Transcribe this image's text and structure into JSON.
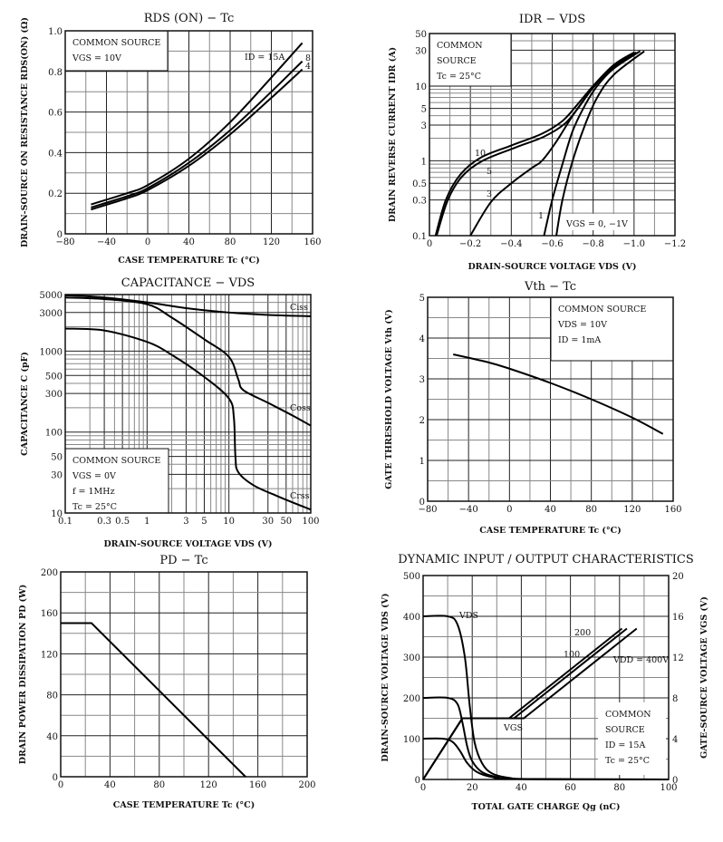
{
  "chart_data": [
    {
      "id": "rds",
      "type": "line",
      "title": "RDS (ON) − Tc",
      "xlabel": "CASE TEMPERATURE  Tc  (°C)",
      "ylabel": "DRAIN-SOURCE ON RESISTANCE  RDS(ON)  (Ω)",
      "xlim": [
        -80,
        160
      ],
      "ylim": [
        0,
        1.0
      ],
      "x_ticks": [
        "−80",
        "−40",
        "0",
        "40",
        "80",
        "120",
        "160"
      ],
      "y_ticks": [
        "0",
        "0.2",
        "0.4",
        "0.6",
        "0.8",
        "1.0"
      ],
      "annotation": [
        "COMMON SOURCE",
        "VGS = 10V"
      ],
      "series_label": "ID = 15A",
      "series": [
        {
          "name": "15",
          "x": [
            -55,
            -20,
            0,
            40,
            80,
            120,
            150
          ],
          "y": [
            0.145,
            0.2,
            0.24,
            0.37,
            0.55,
            0.77,
            0.94
          ]
        },
        {
          "name": "8",
          "x": [
            -55,
            -20,
            0,
            40,
            80,
            120,
            150
          ],
          "y": [
            0.13,
            0.185,
            0.225,
            0.35,
            0.51,
            0.7,
            0.85
          ]
        },
        {
          "name": "4",
          "x": [
            -55,
            -20,
            0,
            40,
            80,
            120,
            150
          ],
          "y": [
            0.12,
            0.175,
            0.215,
            0.335,
            0.49,
            0.67,
            0.81
          ]
        }
      ]
    },
    {
      "id": "idr",
      "type": "line",
      "title": "IDR − VDS",
      "xlabel": "DRAIN-SOURCE VOLTAGE  VDS  (V)",
      "ylabel": "DRAIN REVERSE CURRENT  IDR  (A)",
      "xlim": [
        0,
        -1.2
      ],
      "ylim": [
        0.1,
        50
      ],
      "yscale": "log",
      "x_ticks": [
        "0",
        "−0.2",
        "−0.4",
        "−0.6",
        "−0.8",
        "−1.0",
        "−1.2"
      ],
      "y_ticks": [
        "0.1",
        "0.3",
        "0.5",
        "1",
        "3",
        "5",
        "10",
        "30",
        "50"
      ],
      "annotation": [
        "COMMON",
        "SOURCE",
        "Tc = 25°C"
      ],
      "vgs_label": "VGS = 0, −1V",
      "series": [
        {
          "name": "10",
          "x": [
            -0.03,
            -0.08,
            -0.15,
            -0.25,
            -0.4,
            -0.55,
            -0.65,
            -0.72,
            -0.8,
            -0.9,
            -1.0
          ],
          "y": [
            0.1,
            0.3,
            0.65,
            1.1,
            1.6,
            2.3,
            3.4,
            5.5,
            10,
            19,
            28
          ]
        },
        {
          "name": "5",
          "x": [
            -0.035,
            -0.09,
            -0.16,
            -0.26,
            -0.42,
            -0.56,
            -0.66,
            -0.73,
            -0.8,
            -0.9,
            -1.01
          ],
          "y": [
            0.1,
            0.3,
            0.62,
            1.0,
            1.5,
            2.1,
            3.1,
            5.2,
            9.5,
            18,
            28
          ]
        },
        {
          "name": "3",
          "x": [
            -0.2,
            -0.3,
            -0.4,
            -0.5,
            -0.55,
            -0.62,
            -0.7,
            -0.8,
            -0.9,
            -1.03
          ],
          "y": [
            0.1,
            0.28,
            0.5,
            0.8,
            1.0,
            1.8,
            4.0,
            9.5,
            18,
            29
          ]
        },
        {
          "name": "1",
          "x": [
            -0.56,
            -0.6,
            -0.65,
            -0.7,
            -0.76,
            -0.82,
            -0.9,
            -1.02
          ],
          "y": [
            0.1,
            0.3,
            0.9,
            2.5,
            5.5,
            10,
            17,
            28
          ]
        },
        {
          "name": "0,-1",
          "x": [
            -0.62,
            -0.65,
            -0.7,
            -0.76,
            -0.82,
            -0.9,
            -1.05
          ],
          "y": [
            0.1,
            0.3,
            1.0,
            3.0,
            7,
            14,
            29
          ]
        }
      ]
    },
    {
      "id": "cap",
      "type": "line",
      "title": "CAPACITANCE − VDS",
      "xlabel": "DRAIN-SOURCE VOLTAGE  VDS  (V)",
      "ylabel": "CAPACITANCE  C  (pF)",
      "xlim": [
        0.1,
        100
      ],
      "ylim": [
        10,
        5000
      ],
      "xscale": "log",
      "yscale": "log",
      "x_ticks": [
        "0.1",
        "0.3",
        "0.5",
        "1",
        "3",
        "5",
        "10",
        "30",
        "50",
        "100"
      ],
      "y_ticks": [
        "10",
        "30",
        "50",
        "100",
        "300",
        "500",
        "1000",
        "3000",
        "5000"
      ],
      "annotation": [
        "COMMON SOURCE",
        "VGS = 0V",
        "f = 1MHz",
        "Tc = 25°C"
      ],
      "series": [
        {
          "name": "Ciss",
          "x": [
            0.1,
            0.3,
            1,
            3,
            10,
            30,
            100
          ],
          "y": [
            4900,
            4600,
            4000,
            3400,
            3000,
            2800,
            2700
          ]
        },
        {
          "name": "Coss",
          "x": [
            0.1,
            0.3,
            1,
            2,
            5,
            10,
            13,
            15,
            30,
            60,
            100
          ],
          "y": [
            4600,
            4400,
            3800,
            2600,
            1400,
            850,
            450,
            330,
            230,
            160,
            120
          ]
        },
        {
          "name": "Crss",
          "x": [
            0.1,
            0.3,
            1,
            2,
            5,
            10,
            11.5,
            12,
            13,
            20,
            40,
            100
          ],
          "y": [
            1900,
            1800,
            1300,
            900,
            480,
            260,
            150,
            50,
            32,
            22,
            16,
            11
          ]
        }
      ]
    },
    {
      "id": "vth",
      "type": "line",
      "title": "Vth − Tc",
      "xlabel": "CASE TEMPERATURE  Tc  (°C)",
      "ylabel": "GATE THRESHOLD VOLTAGE  Vth  (V)",
      "xlim": [
        -80,
        160
      ],
      "ylim": [
        0,
        5
      ],
      "x_ticks": [
        "−80",
        "−40",
        "0",
        "40",
        "80",
        "120",
        "160"
      ],
      "y_ticks": [
        "0",
        "1",
        "2",
        "3",
        "4",
        "5"
      ],
      "annotation": [
        "COMMON SOURCE",
        "VDS = 10V",
        "ID = 1mA"
      ],
      "series": [
        {
          "name": "Vth",
          "x": [
            -55,
            -20,
            0,
            40,
            80,
            120,
            150
          ],
          "y": [
            3.6,
            3.4,
            3.25,
            2.9,
            2.5,
            2.05,
            1.65
          ]
        }
      ]
    },
    {
      "id": "pd",
      "type": "line",
      "title": "PD − Tc",
      "xlabel": "CASE TEMPERATURE  Tc  (°C)",
      "ylabel": "DRAIN POWER DISSIPATION  PD  (W)",
      "xlim": [
        0,
        200
      ],
      "ylim": [
        0,
        200
      ],
      "x_ticks": [
        "0",
        "40",
        "80",
        "120",
        "160",
        "200"
      ],
      "y_ticks": [
        "0",
        "40",
        "80",
        "120",
        "160",
        "200"
      ],
      "series": [
        {
          "name": "PD",
          "x": [
            0,
            25,
            150
          ],
          "y": [
            150,
            150,
            0
          ]
        }
      ]
    },
    {
      "id": "dyn",
      "type": "line",
      "title": "DYNAMIC INPUT / OUTPUT CHARACTERISTICS",
      "xlabel": "TOTAL GATE CHARGE  Qg  (nC)",
      "ylabel": "DRAIN-SOURCE VOLTAGE  VDS  (V)",
      "y2label": "GATE-SOURCE VOLTAGE  VGS  (V)",
      "xlim": [
        0,
        100
      ],
      "ylim": [
        0,
        500
      ],
      "y2lim": [
        0,
        20
      ],
      "x_ticks": [
        "0",
        "20",
        "40",
        "60",
        "80",
        "100"
      ],
      "y_ticks": [
        "0",
        "100",
        "200",
        "300",
        "400",
        "500"
      ],
      "y2_ticks": [
        "0",
        "4",
        "8",
        "12",
        "16",
        "20"
      ],
      "annotation": [
        "COMMON",
        "SOURCE",
        "ID = 15A",
        "Tc = 25°C"
      ],
      "labels": {
        "vds": "VDS",
        "vgs": "VGS",
        "vdd400": "VDD = 400V",
        "vdd200": "200",
        "vdd100": "100"
      },
      "series": [
        {
          "name": "VDS 400V",
          "axis": "left",
          "x": [
            0,
            10,
            14,
            17,
            19,
            21,
            24,
            28,
            35,
            45,
            100
          ],
          "y": [
            400,
            400,
            380,
            300,
            180,
            90,
            40,
            15,
            4,
            1,
            0
          ]
        },
        {
          "name": "VDS 200V",
          "axis": "left",
          "x": [
            0,
            10,
            14,
            16,
            18,
            20,
            24,
            30,
            40,
            100
          ],
          "y": [
            200,
            200,
            185,
            140,
            80,
            45,
            18,
            6,
            1,
            0
          ]
        },
        {
          "name": "VDS 100V",
          "axis": "left",
          "x": [
            0,
            8,
            12,
            15,
            18,
            22,
            28,
            38,
            100
          ],
          "y": [
            100,
            100,
            92,
            70,
            40,
            18,
            6,
            1,
            0
          ]
        },
        {
          "name": "VGS 100V",
          "axis": "right",
          "x": [
            0,
            16,
            35,
            81
          ],
          "y": [
            0,
            6,
            6,
            14.8
          ]
        },
        {
          "name": "VGS 200V",
          "axis": "right",
          "x": [
            0,
            16,
            37,
            83
          ],
          "y": [
            0,
            6,
            6,
            14.8
          ]
        },
        {
          "name": "VGS 400V",
          "axis": "right",
          "x": [
            0,
            16,
            41,
            87
          ],
          "y": [
            0,
            6,
            6,
            14.8
          ]
        }
      ]
    }
  ]
}
